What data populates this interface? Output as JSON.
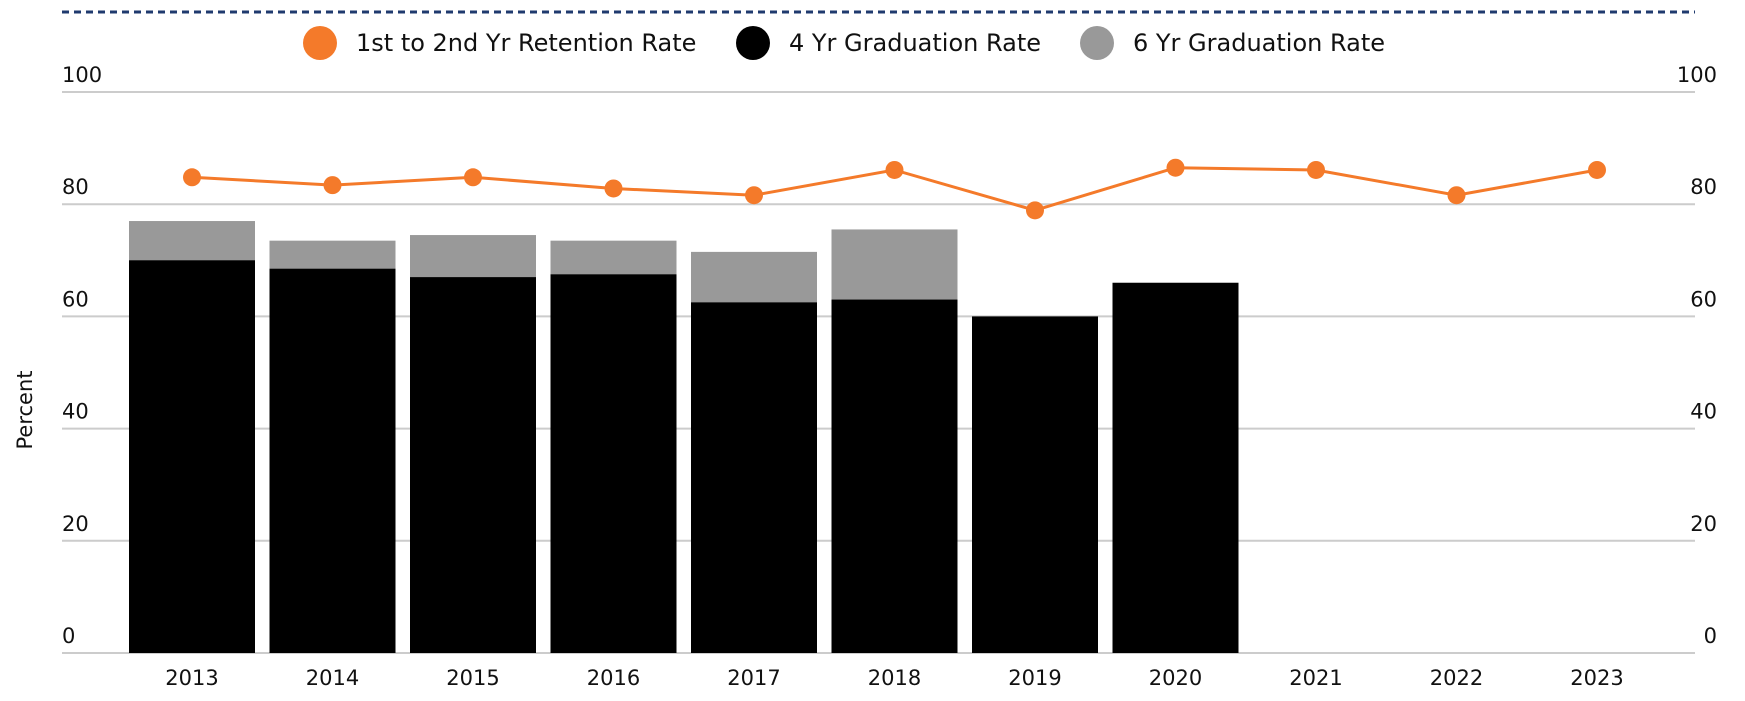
{
  "chart_data": {
    "type": "bar_line",
    "y_label": "Percent",
    "categories": [
      "2013",
      "2014",
      "2015",
      "2016",
      "2017",
      "2018",
      "2019",
      "2020",
      "2021",
      "2022",
      "2023"
    ],
    "series": [
      {
        "name": "1st to 2nd Yr Retention Rate",
        "type": "line",
        "color": "#f47a2a",
        "values": [
          84.8,
          83.4,
          84.8,
          82.8,
          81.6,
          86.1,
          78.9,
          86.5,
          86.1,
          81.6,
          86.1
        ]
      },
      {
        "name": "4 Yr Graduation Rate",
        "type": "bar",
        "color": "#000000",
        "values": [
          70,
          68.5,
          67,
          67.5,
          62.5,
          63,
          60,
          66,
          null,
          null,
          null
        ]
      },
      {
        "name": "6 Yr Graduation Rate",
        "type": "bar",
        "color": "#999999",
        "values": [
          77,
          73.5,
          74.5,
          73.5,
          71.5,
          75.5,
          null,
          null,
          null,
          null,
          null
        ]
      }
    ],
    "ylim": [
      0,
      100
    ],
    "yticks": [
      0,
      20,
      40,
      60,
      80,
      100
    ],
    "y2lim": [
      0,
      100
    ],
    "y2ticks": [
      0,
      20,
      40,
      60,
      80,
      100
    ],
    "grid": true
  }
}
